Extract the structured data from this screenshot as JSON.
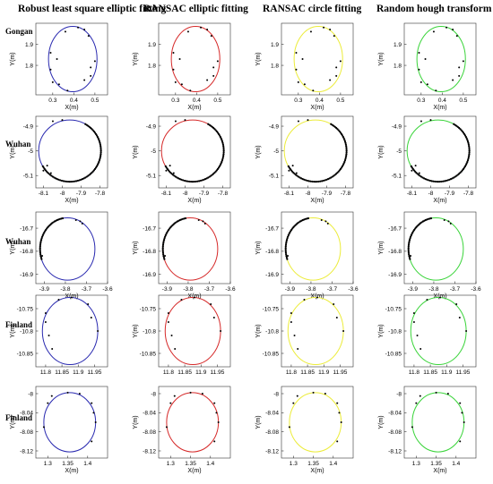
{
  "columns": [
    {
      "title": "Robust least square elliptic fitting",
      "color": "#2a2ab0"
    },
    {
      "title": "RANSAC elliptic fitting",
      "color": "#d62a2a"
    },
    {
      "title": "RANSAC circle fitting",
      "color": "#ecec3a"
    },
    {
      "title": "Random hough transform",
      "color": "#3ad43a"
    }
  ],
  "rows": [
    {
      "label": "Gongan"
    },
    {
      "label": "Wuhan"
    },
    {
      "label": "Wuhan"
    },
    {
      "label": "Finland"
    },
    {
      "label": "Finland"
    }
  ],
  "chart_data": [
    {
      "type": "scatter",
      "row": 0,
      "xlabel": "X(m)",
      "ylabel": "Y(m)",
      "xlim": [
        0.22,
        0.56
      ],
      "ylim": [
        1.66,
        2.0
      ],
      "xticks": [
        0.3,
        0.4,
        0.5
      ],
      "xtick_labels": [
        "0.3",
        "0.4",
        "0.5"
      ],
      "yticks": [
        1.8,
        1.9
      ],
      "ytick_labels": [
        "1.8",
        "1.9"
      ],
      "circle": {
        "cx": 0.395,
        "cy": 1.83,
        "rx": 0.115,
        "ry": 0.155
      },
      "points": [
        [
          0.29,
          1.78
        ],
        [
          0.3,
          1.72
        ],
        [
          0.33,
          1.71
        ],
        [
          0.37,
          1.68
        ],
        [
          0.45,
          1.73
        ],
        [
          0.48,
          1.79
        ],
        [
          0.5,
          1.82
        ],
        [
          0.45,
          1.97
        ],
        [
          0.42,
          1.98
        ],
        [
          0.36,
          1.96
        ],
        [
          0.29,
          1.86
        ],
        [
          0.32,
          1.83
        ],
        [
          0.48,
          1.75
        ],
        [
          0.47,
          1.94
        ]
      ]
    },
    {
      "type": "scatter",
      "row": 1,
      "xlabel": "X(m)",
      "ylabel": "Y(m)",
      "xlim": [
        -8.14,
        -7.76
      ],
      "ylim": [
        -5.15,
        -4.86
      ],
      "xticks": [
        -8.1,
        -8.0,
        -7.9,
        -7.8
      ],
      "xtick_labels": [
        "-8.1",
        "-8",
        "-7.9",
        "-7.8"
      ],
      "yticks": [
        -5.1,
        -5.0,
        -4.9
      ],
      "ytick_labels": [
        "-5.1",
        "-5",
        "-4.9"
      ],
      "circle": {
        "cx": -7.96,
        "cy": -5.0,
        "rx": 0.165,
        "ry": 0.125
      },
      "arc": {
        "from": -150,
        "to": 60
      },
      "points": [
        [
          -8.08,
          -5.06
        ],
        [
          -8.1,
          -5.08
        ],
        [
          -8.06,
          -5.09
        ],
        [
          -8.05,
          -4.88
        ],
        [
          -8.0,
          -4.875
        ]
      ]
    },
    {
      "type": "scatter",
      "row": 2,
      "xlabel": "X(m)",
      "ylabel": "Y(m)",
      "xlim": [
        -3.94,
        -3.6
      ],
      "ylim": [
        -16.94,
        -16.63
      ],
      "xticks": [
        -3.9,
        -3.8,
        -3.7,
        -3.6
      ],
      "xtick_labels": [
        "-3.9",
        "-3.8",
        "-3.7",
        "-3.6"
      ],
      "yticks": [
        -16.9,
        -16.8,
        -16.7
      ],
      "ytick_labels": [
        "-16.9",
        "-16.8",
        "-16.7"
      ],
      "circle": {
        "cx": -3.79,
        "cy": -16.79,
        "rx": 0.13,
        "ry": 0.135
      },
      "arc": {
        "from": 100,
        "to": 200
      },
      "points": [
        [
          -3.75,
          -16.665
        ],
        [
          -3.73,
          -16.67
        ],
        [
          -3.72,
          -16.68
        ],
        [
          -3.91,
          -16.82
        ]
      ]
    },
    {
      "type": "scatter",
      "row": 3,
      "xlabel": "",
      "ylabel": "Y(m)",
      "xlim": [
        11.77,
        11.99
      ],
      "ylim": [
        -10.88,
        -10.72
      ],
      "xticks": [
        11.8,
        11.85,
        11.9,
        11.95
      ],
      "xtick_labels": [
        "11.8",
        "11.85",
        "11.9",
        "11.95"
      ],
      "yticks": [
        -10.85,
        -10.8,
        -10.75
      ],
      "ytick_labels": [
        "-10.85",
        "-10.8",
        "-10.75"
      ],
      "circle": {
        "cx": 11.875,
        "cy": -10.8,
        "rx": 0.085,
        "ry": 0.075
      },
      "points": [
        [
          11.8,
          -10.76
        ],
        [
          11.8,
          -10.78
        ],
        [
          11.81,
          -10.81
        ],
        [
          11.82,
          -10.84
        ],
        [
          11.84,
          -10.73
        ],
        [
          11.88,
          -10.725
        ],
        [
          11.93,
          -10.74
        ],
        [
          11.94,
          -10.77
        ],
        [
          11.96,
          -10.8
        ]
      ]
    },
    {
      "type": "scatter",
      "row": 4,
      "xlabel": "X(m)",
      "ylabel": "Y(m)",
      "xlim": [
        1.27,
        1.45
      ],
      "ylim": [
        -8.135,
        -7.985
      ],
      "xticks": [
        1.3,
        1.35,
        1.4
      ],
      "xtick_labels": [
        "1.3",
        "1.35",
        "1.4"
      ],
      "yticks": [
        -8.12,
        -8.08,
        -8.04,
        -8.0
      ],
      "ytick_labels": [
        "-8.12",
        "-8.08",
        "-8.04",
        "-8"
      ],
      "circle": {
        "cx": 1.355,
        "cy": -8.06,
        "rx": 0.065,
        "ry": 0.062
      },
      "points": [
        [
          1.3,
          -8.02
        ],
        [
          1.31,
          -8.005
        ],
        [
          1.35,
          -7.998
        ],
        [
          1.38,
          -8.0
        ],
        [
          1.41,
          -8.02
        ],
        [
          1.415,
          -8.04
        ],
        [
          1.42,
          -8.06
        ],
        [
          1.41,
          -8.1
        ],
        [
          1.29,
          -8.07
        ]
      ]
    }
  ]
}
